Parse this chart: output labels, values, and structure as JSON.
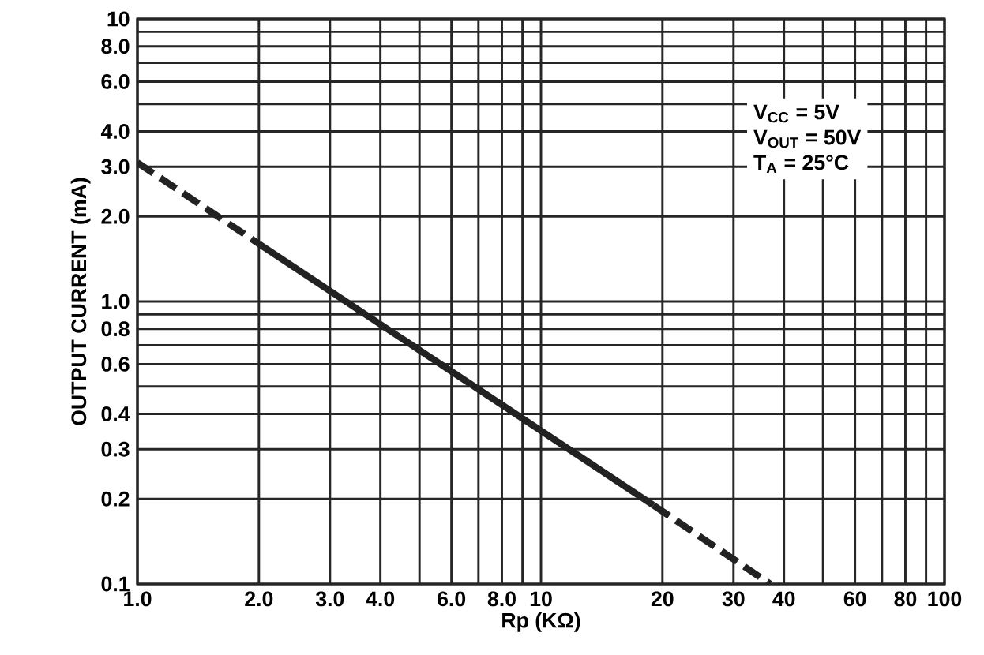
{
  "chart_data": {
    "type": "line",
    "xlabel": "Rp (KΩ)",
    "ylabel": "OUTPUT CURRENT (mA)",
    "annotations": [
      "V$_{CC}$ = 5V",
      "V$_{OUT}$ = 50V",
      "T$_{A}$ = 25°C"
    ],
    "series": [
      {
        "x": [
          1,
          2
        ],
        "values": [
          3.1,
          1.6
        ],
        "color": "#222222",
        "line_style": "dashed"
      },
      {
        "x": [
          2,
          19
        ],
        "values": [
          1.6,
          0.19
        ],
        "color": "#222222",
        "line_style": "solid"
      },
      {
        "x": [
          19,
          37
        ],
        "values": [
          0.19,
          0.1
        ],
        "color": "#222222",
        "line_style": "dashed"
      }
    ],
    "log": "xy",
    "grid": true,
    "marker": "none",
    "xlim": [
      1,
      100
    ],
    "ylim": [
      0.1,
      10
    ],
    "xticks": [
      {
        "value": 1,
        "label": "1.0"
      },
      {
        "value": 2,
        "label": "2.0"
      },
      {
        "value": 3,
        "label": "3.0"
      },
      {
        "value": 4,
        "label": "4.0"
      },
      {
        "value": 5,
        "label": null
      },
      {
        "value": 6,
        "label": "6.0"
      },
      {
        "value": 7,
        "label": null
      },
      {
        "value": 8,
        "label": "8.0"
      },
      {
        "value": 9,
        "label": null
      },
      10,
      20,
      30,
      40,
      {
        "value": 50,
        "label": null
      },
      60,
      {
        "value": 70,
        "label": null
      },
      80,
      {
        "value": 90,
        "label": null
      },
      100
    ],
    "yticks": [
      0.1,
      0.2,
      0.3,
      0.4,
      {
        "value": 0.5,
        "label": null
      },
      0.6,
      {
        "value": 0.7,
        "label": null
      },
      0.8,
      {
        "value": 0.9,
        "label": null
      },
      {
        "value": 1,
        "label": "1.0"
      },
      {
        "value": 2,
        "label": "2.0"
      },
      {
        "value": 3,
        "label": "3.0"
      },
      {
        "value": 4,
        "label": "4.0"
      },
      {
        "value": 5,
        "label": null
      },
      {
        "value": 6,
        "label": "6.0"
      },
      {
        "value": 7,
        "label": null
      },
      {
        "value": 8,
        "label": "8.0"
      },
      {
        "value": 9,
        "label": null
      },
      10
    ]
  }
}
